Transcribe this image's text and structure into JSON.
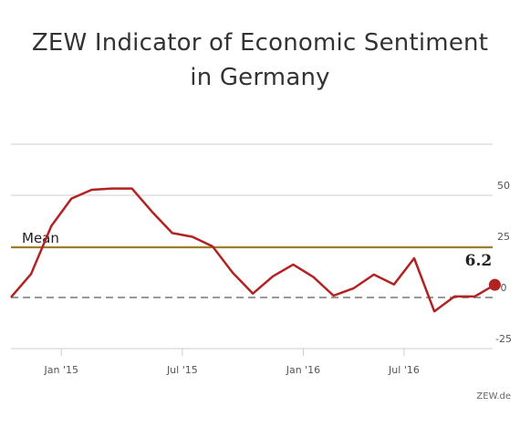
{
  "title": {
    "line1": "ZEW Indicator of Economic Sentiment",
    "line2": "in Germany"
  },
  "credit": "ZEW.de",
  "colors": {
    "series": "#b22222",
    "mean": "#9a7a1c",
    "zero": "#999999",
    "grid": "#cccccc"
  },
  "chart_data": {
    "type": "line",
    "title": "ZEW Indicator of Economic Sentiment in Germany",
    "xlabel": "",
    "ylabel": "",
    "ylim": [
      -25,
      75
    ],
    "yticks": [
      50,
      25,
      0,
      -25
    ],
    "xticks": [
      {
        "label": "Jan '15",
        "index": 2.5
      },
      {
        "label": "Jul '15",
        "index": 8.5
      },
      {
        "label": "Jan '16",
        "index": 14.5
      },
      {
        "label": "Jul '16",
        "index": 19.5
      }
    ],
    "grid": true,
    "mean": {
      "label": "Mean",
      "value": 24.5
    },
    "last_point_label": "6.2",
    "series": [
      {
        "name": "",
        "values": [
          0.1,
          11.5,
          34.9,
          48.4,
          52.7,
          53.3,
          53.3,
          41.9,
          31.5,
          29.7,
          25.0,
          12.1,
          1.9,
          10.4,
          16.1,
          10.0,
          0.9,
          4.5,
          11.2,
          6.4,
          19.2,
          -6.8,
          0.5,
          0.5,
          6.2
        ]
      }
    ]
  }
}
